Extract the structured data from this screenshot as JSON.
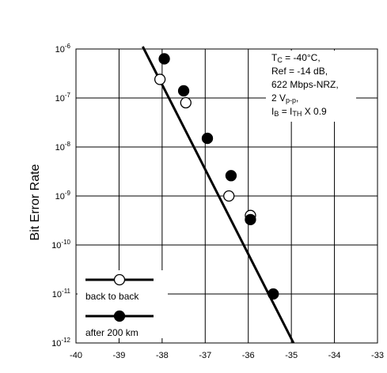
{
  "chart_data": {
    "type": "scatter",
    "ylabel": "Bit Error Rate",
    "y_scale": "log",
    "xlim": [
      -40,
      -33
    ],
    "ylim_exponent": [
      -12,
      -6
    ],
    "x_ticks": [
      "-40",
      "-39",
      "-38",
      "-37",
      "-36",
      "-35",
      "-34",
      "-33"
    ],
    "y_ticks": [
      {
        "base": "10",
        "exp": "-6"
      },
      {
        "base": "10",
        "exp": "-7"
      },
      {
        "base": "10",
        "exp": "-8"
      },
      {
        "base": "10",
        "exp": "-9"
      },
      {
        "base": "10",
        "exp": "-10"
      },
      {
        "base": "10",
        "exp": "-11"
      },
      {
        "base": "10",
        "exp": "-12"
      }
    ],
    "grid": true,
    "legend_position": "bottom-left",
    "series": [
      {
        "name": "back to back",
        "marker": "open-circle",
        "points": [
          {
            "x": -38.05,
            "y": 2.4e-07
          },
          {
            "x": -37.45,
            "y": 8e-08
          },
          {
            "x": -36.45,
            "y": 1e-09
          },
          {
            "x": -35.95,
            "y": 4e-10
          }
        ]
      },
      {
        "name": "after 200 km",
        "marker": "filled-circle",
        "points": [
          {
            "x": -37.95,
            "y": 6.3e-07
          },
          {
            "x": -37.5,
            "y": 1.4e-07
          },
          {
            "x": -36.95,
            "y": 1.5e-08
          },
          {
            "x": -36.4,
            "y": 2.6e-09
          },
          {
            "x": -35.95,
            "y": 3.3e-10
          },
          {
            "x": -35.42,
            "y": 1e-11
          }
        ]
      }
    ],
    "fit_line": {
      "x": [
        -38.45,
        -34.95
      ],
      "y_exponent": [
        -5.95,
        -12
      ]
    },
    "annotation_lines": [
      [
        {
          "text": "T"
        },
        {
          "text": "C",
          "small": true
        },
        {
          "text": " = -40°C,"
        }
      ],
      [
        {
          "text": "Ref = -14 dB,"
        }
      ],
      [
        {
          "text": "622 Mbps-NRZ,"
        }
      ],
      [
        {
          "text": "2 V"
        },
        {
          "text": "p-p",
          "small": true
        },
        {
          "text": ","
        }
      ],
      [
        {
          "text": "I"
        },
        {
          "text": "B",
          "small": true
        },
        {
          "text": " = I"
        },
        {
          "text": "TH",
          "small": true
        },
        {
          "text": " X 0.9"
        }
      ]
    ]
  }
}
